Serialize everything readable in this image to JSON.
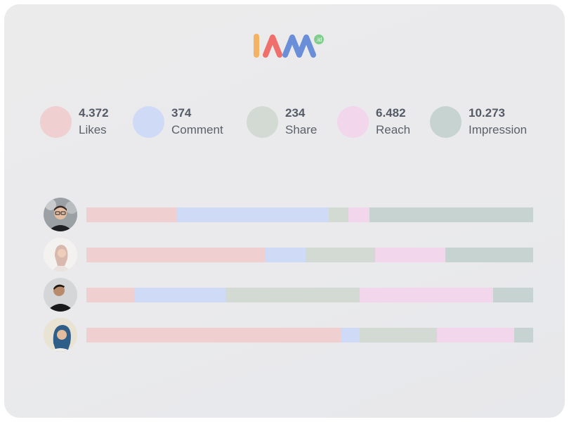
{
  "logo": {
    "text": "IAM",
    "badge": ".id"
  },
  "metrics": [
    {
      "value": "4.372",
      "label": "Likes",
      "color": "#efcfcf"
    },
    {
      "value": "374",
      "label": "Comment",
      "color": "#cfdaf7"
    },
    {
      "value": "234",
      "label": "Share",
      "color": "#d3dad3"
    },
    {
      "value": "6.482",
      "label": "Reach",
      "color": "#f1d6ec"
    },
    {
      "value": "10.273",
      "label": "Impression",
      "color": "#c6d3d1"
    }
  ],
  "influencers": [
    {
      "avatar": "man-glasses",
      "shares": [
        20.2,
        34.1,
        4.4,
        4.6,
        36.7
      ]
    },
    {
      "avatar": "woman-hijab-white",
      "shares": [
        40.1,
        9.0,
        15.6,
        15.6,
        19.7
      ]
    },
    {
      "avatar": "man-black-jacket",
      "shares": [
        10.8,
        20.3,
        30.0,
        29.9,
        9.0
      ]
    },
    {
      "avatar": "woman-hijab-blue",
      "shares": [
        57.1,
        4.1,
        17.3,
        17.2,
        4.3
      ]
    }
  ]
}
